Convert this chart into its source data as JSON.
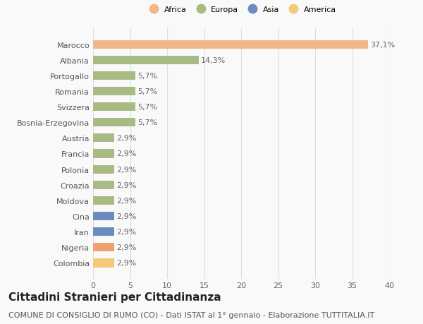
{
  "countries": [
    "Colombia",
    "Nigeria",
    "Iran",
    "Cina",
    "Moldova",
    "Croazia",
    "Polonia",
    "Francia",
    "Austria",
    "Bosnia-Erzegovina",
    "Svizzera",
    "Romania",
    "Portogallo",
    "Albania",
    "Marocco"
  ],
  "values": [
    2.9,
    2.9,
    2.9,
    2.9,
    2.9,
    2.9,
    2.9,
    2.9,
    2.9,
    5.7,
    5.7,
    5.7,
    5.7,
    14.3,
    37.1
  ],
  "labels": [
    "2,9%",
    "2,9%",
    "2,9%",
    "2,9%",
    "2,9%",
    "2,9%",
    "2,9%",
    "2,9%",
    "2,9%",
    "5,7%",
    "5,7%",
    "5,7%",
    "5,7%",
    "14,3%",
    "37,1%"
  ],
  "colors": [
    "#F5C97A",
    "#F0A070",
    "#6B8CBE",
    "#6B8CBE",
    "#A8BB85",
    "#A8BB85",
    "#A8BB85",
    "#A8BB85",
    "#A8BB85",
    "#A8BB85",
    "#A8BB85",
    "#A8BB85",
    "#A8BB85",
    "#A8BB85",
    "#F0B88A"
  ],
  "legend_labels": [
    "Africa",
    "Europa",
    "Asia",
    "America"
  ],
  "legend_colors": [
    "#F0B88A",
    "#A8BB85",
    "#6B8CBE",
    "#F5C97A"
  ],
  "title": "Cittadini Stranieri per Cittadinanza",
  "subtitle": "COMUNE DI CONSIGLIO DI RUMO (CO) - Dati ISTAT al 1° gennaio - Elaborazione TUTTITALIA.IT",
  "xlim": [
    0,
    40
  ],
  "xticks": [
    0,
    5,
    10,
    15,
    20,
    25,
    30,
    35,
    40
  ],
  "background_color": "#f9f9f9",
  "grid_color": "#dddddd",
  "bar_height": 0.55,
  "title_fontsize": 11,
  "subtitle_fontsize": 8,
  "label_fontsize": 8,
  "tick_fontsize": 8
}
